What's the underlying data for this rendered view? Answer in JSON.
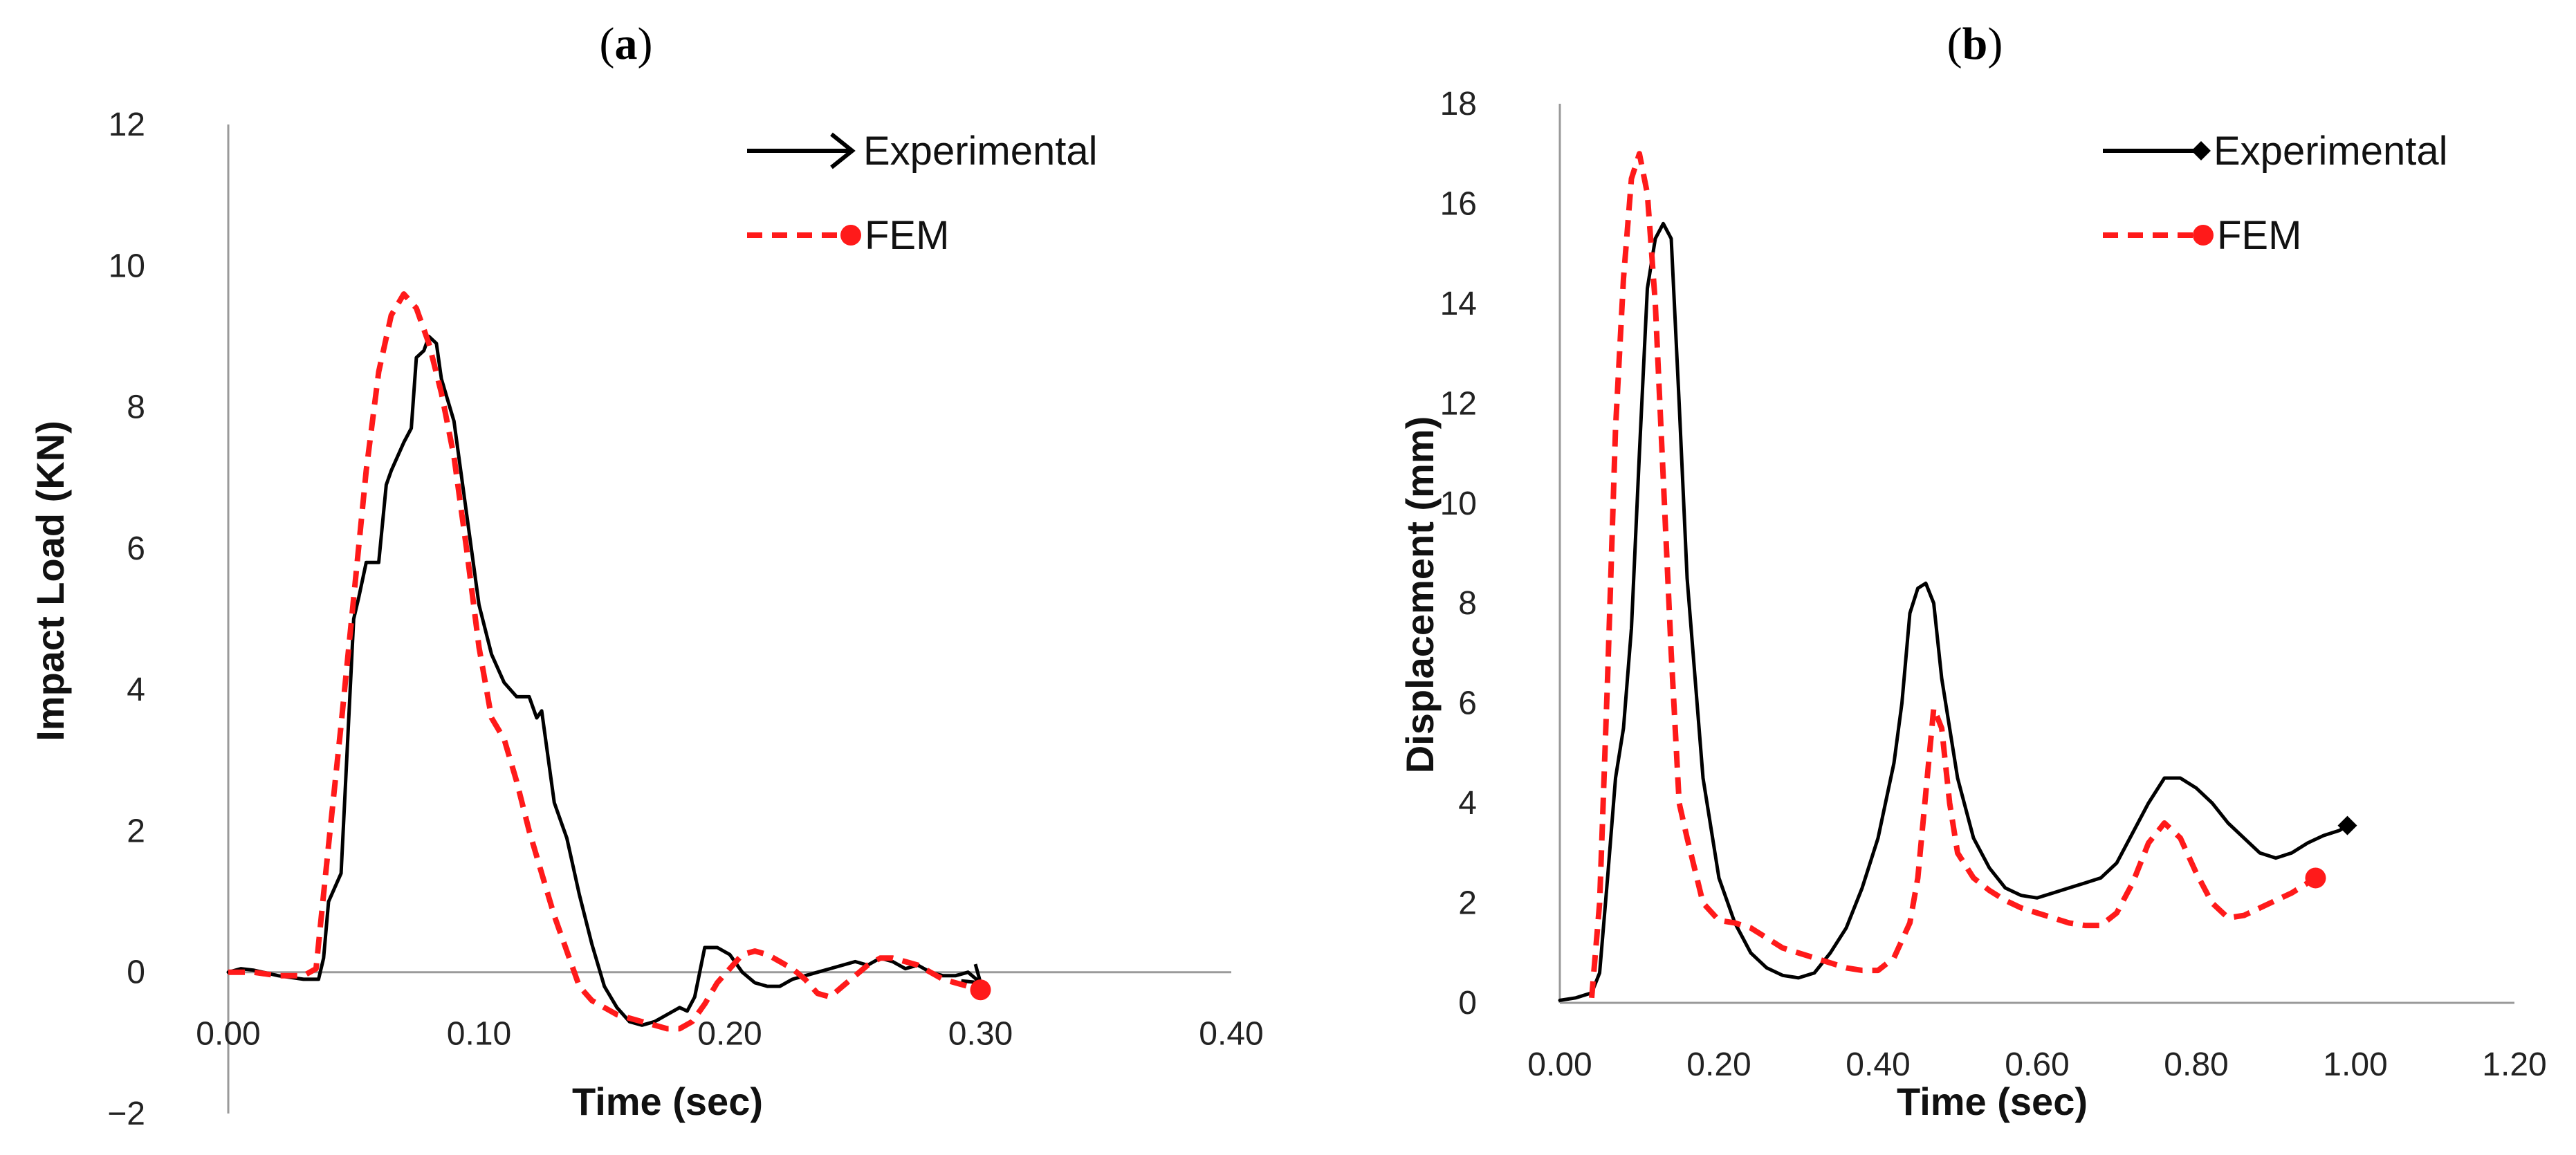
{
  "colors": {
    "experimental": "#000000",
    "fem": "#ff1a1a",
    "axis": "#9a9a9a"
  },
  "chart_data": [
    {
      "panel_label_open": "(",
      "panel_label_letter": "a",
      "panel_label_close": ")",
      "type": "line",
      "xlabel": "Time (sec)",
      "ylabel": "Impact Load (KN)",
      "xlim": [
        0,
        0.4
      ],
      "ylim": [
        -2,
        12
      ],
      "xticks": [
        0,
        0.1,
        0.2,
        0.3,
        0.4
      ],
      "xtick_labels": [
        "0.00",
        "0.10",
        "0.20",
        "0.30",
        "0.40"
      ],
      "yticks": [
        -2,
        0,
        2,
        4,
        6,
        8,
        10,
        12
      ],
      "ytick_labels": [
        "−2",
        "0",
        "2",
        "4",
        "6",
        "8",
        "10",
        "12"
      ],
      "grid": false,
      "legend_position": "top-right",
      "series": [
        {
          "name": "Experimental",
          "color": "#000000",
          "dash": "solid",
          "marker": "arrow",
          "x": [
            0,
            0.005,
            0.01,
            0.02,
            0.03,
            0.036,
            0.038,
            0.04,
            0.045,
            0.05,
            0.052,
            0.055,
            0.06,
            0.063,
            0.065,
            0.07,
            0.073,
            0.075,
            0.078,
            0.08,
            0.083,
            0.085,
            0.09,
            0.095,
            0.1,
            0.105,
            0.11,
            0.115,
            0.12,
            0.123,
            0.125,
            0.13,
            0.133,
            0.135,
            0.14,
            0.145,
            0.15,
            0.155,
            0.16,
            0.165,
            0.17,
            0.175,
            0.18,
            0.183,
            0.186,
            0.19,
            0.195,
            0.2,
            0.205,
            0.21,
            0.215,
            0.22,
            0.225,
            0.23,
            0.235,
            0.24,
            0.245,
            0.25,
            0.255,
            0.26,
            0.265,
            0.27,
            0.275,
            0.28,
            0.285,
            0.29,
            0.295,
            0.3
          ],
          "y": [
            0,
            0.05,
            0.03,
            -0.05,
            -0.1,
            -0.1,
            0.2,
            1.0,
            1.4,
            5.0,
            5.3,
            5.8,
            5.8,
            6.9,
            7.1,
            7.5,
            7.7,
            8.7,
            8.8,
            9.0,
            8.9,
            8.4,
            7.8,
            6.5,
            5.2,
            4.5,
            4.1,
            3.9,
            3.9,
            3.6,
            3.7,
            2.4,
            2.1,
            1.9,
            1.1,
            0.4,
            -0.2,
            -0.5,
            -0.7,
            -0.75,
            -0.7,
            -0.6,
            -0.5,
            -0.55,
            -0.35,
            0.35,
            0.35,
            0.25,
            0.0,
            -0.15,
            -0.2,
            -0.2,
            -0.1,
            -0.05,
            0.0,
            0.05,
            0.1,
            0.15,
            0.1,
            0.2,
            0.15,
            0.05,
            0.1,
            0.0,
            -0.05,
            -0.05,
            0.0,
            -0.15
          ]
        },
        {
          "name": "FEM",
          "color": "#ff1a1a",
          "dash": "dashed",
          "marker": "circle",
          "x": [
            0,
            0.01,
            0.02,
            0.03,
            0.035,
            0.04,
            0.045,
            0.05,
            0.055,
            0.06,
            0.065,
            0.07,
            0.075,
            0.08,
            0.085,
            0.09,
            0.095,
            0.1,
            0.105,
            0.11,
            0.115,
            0.12,
            0.125,
            0.13,
            0.135,
            0.14,
            0.145,
            0.15,
            0.155,
            0.16,
            0.165,
            0.17,
            0.175,
            0.18,
            0.185,
            0.19,
            0.195,
            0.2,
            0.205,
            0.21,
            0.215,
            0.22,
            0.225,
            0.23,
            0.235,
            0.24,
            0.245,
            0.25,
            0.255,
            0.26,
            0.265,
            0.27,
            0.275,
            0.28,
            0.285,
            0.29,
            0.295,
            0.3
          ],
          "y": [
            0,
            0,
            -0.05,
            -0.05,
            0.05,
            1.8,
            3.5,
            5.3,
            7.1,
            8.5,
            9.3,
            9.6,
            9.4,
            8.9,
            8.2,
            7.3,
            6.0,
            4.6,
            3.6,
            3.3,
            2.7,
            2.0,
            1.4,
            0.8,
            0.3,
            -0.2,
            -0.4,
            -0.5,
            -0.6,
            -0.65,
            -0.7,
            -0.75,
            -0.8,
            -0.8,
            -0.7,
            -0.45,
            -0.15,
            0.05,
            0.25,
            0.3,
            0.25,
            0.15,
            0.05,
            -0.1,
            -0.3,
            -0.35,
            -0.2,
            -0.05,
            0.1,
            0.2,
            0.2,
            0.15,
            0.1,
            0.0,
            -0.1,
            -0.15,
            -0.2,
            -0.25
          ]
        }
      ]
    },
    {
      "panel_label_open": "(",
      "panel_label_letter": "b",
      "panel_label_close": ")",
      "type": "line",
      "xlabel": "Time (sec)",
      "ylabel": "Displacement (mm)",
      "xlim": [
        0,
        1.2
      ],
      "ylim": [
        0,
        18
      ],
      "xticks": [
        0,
        0.2,
        0.4,
        0.6,
        0.8,
        1.0,
        1.2
      ],
      "xtick_labels": [
        "0.00",
        "0.20",
        "0.40",
        "0.60",
        "0.80",
        "1.00",
        "1.20"
      ],
      "yticks": [
        0,
        2,
        4,
        6,
        8,
        10,
        12,
        14,
        16,
        18
      ],
      "ytick_labels": [
        "0",
        "2",
        "4",
        "6",
        "8",
        "10",
        "12",
        "14",
        "16",
        "18"
      ],
      "grid": false,
      "legend_position": "top-right",
      "series": [
        {
          "name": "Experimental",
          "color": "#000000",
          "dash": "solid",
          "marker": "diamond",
          "x": [
            0,
            0.02,
            0.04,
            0.05,
            0.06,
            0.07,
            0.08,
            0.09,
            0.1,
            0.11,
            0.12,
            0.13,
            0.14,
            0.15,
            0.16,
            0.18,
            0.2,
            0.22,
            0.24,
            0.26,
            0.28,
            0.3,
            0.32,
            0.34,
            0.36,
            0.38,
            0.4,
            0.42,
            0.43,
            0.44,
            0.45,
            0.46,
            0.47,
            0.48,
            0.5,
            0.52,
            0.54,
            0.56,
            0.58,
            0.6,
            0.62,
            0.64,
            0.66,
            0.68,
            0.7,
            0.72,
            0.74,
            0.76,
            0.78,
            0.8,
            0.82,
            0.84,
            0.86,
            0.88,
            0.9,
            0.92,
            0.94,
            0.96,
            0.98,
            0.99
          ],
          "y": [
            0.05,
            0.1,
            0.2,
            0.6,
            2.5,
            4.5,
            5.5,
            7.5,
            11.0,
            14.3,
            15.3,
            15.6,
            15.3,
            12.0,
            8.5,
            4.5,
            2.5,
            1.6,
            1.0,
            0.7,
            0.55,
            0.5,
            0.6,
            1.0,
            1.5,
            2.3,
            3.3,
            4.8,
            6.0,
            7.8,
            8.3,
            8.4,
            8.0,
            6.5,
            4.5,
            3.3,
            2.7,
            2.3,
            2.15,
            2.1,
            2.2,
            2.3,
            2.4,
            2.5,
            2.8,
            3.4,
            4.0,
            4.5,
            4.5,
            4.3,
            4.0,
            3.6,
            3.3,
            3.0,
            2.9,
            3.0,
            3.2,
            3.35,
            3.45,
            3.55
          ]
        },
        {
          "name": "FEM",
          "color": "#ff1a1a",
          "dash": "dashed",
          "marker": "circle",
          "x": [
            0.04,
            0.05,
            0.06,
            0.07,
            0.08,
            0.09,
            0.1,
            0.11,
            0.12,
            0.13,
            0.14,
            0.15,
            0.16,
            0.18,
            0.2,
            0.22,
            0.24,
            0.26,
            0.28,
            0.3,
            0.32,
            0.34,
            0.36,
            0.38,
            0.4,
            0.42,
            0.44,
            0.45,
            0.46,
            0.47,
            0.48,
            0.49,
            0.5,
            0.52,
            0.54,
            0.56,
            0.58,
            0.6,
            0.62,
            0.64,
            0.66,
            0.68,
            0.7,
            0.72,
            0.74,
            0.76,
            0.78,
            0.8,
            0.82,
            0.84,
            0.86,
            0.88,
            0.9,
            0.92,
            0.94,
            0.95
          ],
          "y": [
            0.1,
            2.0,
            6.5,
            11.5,
            14.5,
            16.5,
            17.0,
            16.2,
            14.0,
            10.5,
            7.0,
            4.0,
            3.3,
            2.0,
            1.65,
            1.6,
            1.5,
            1.3,
            1.1,
            1.0,
            0.9,
            0.8,
            0.7,
            0.65,
            0.65,
            0.9,
            1.6,
            2.5,
            4.2,
            5.9,
            5.5,
            4.0,
            3.0,
            2.5,
            2.25,
            2.05,
            1.9,
            1.8,
            1.7,
            1.6,
            1.55,
            1.55,
            1.8,
            2.4,
            3.2,
            3.6,
            3.3,
            2.6,
            2.0,
            1.7,
            1.75,
            1.9,
            2.05,
            2.2,
            2.4,
            2.5
          ]
        }
      ]
    }
  ]
}
